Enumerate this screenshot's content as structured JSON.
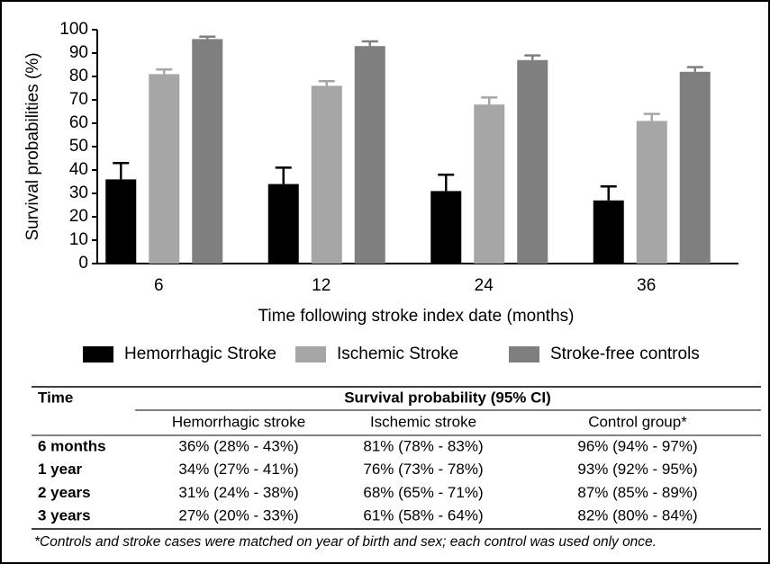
{
  "chart_data": {
    "type": "bar",
    "x_label": "Time following stroke index date (months)",
    "y_label": "Survival probabilities (%)",
    "categories": [
      "6",
      "12",
      "24",
      "36"
    ],
    "series": [
      {
        "name": "Hemorrhagic Stroke",
        "color": "#000000",
        "values": [
          36,
          34,
          31,
          27
        ],
        "errors": [
          7,
          7,
          7,
          6
        ]
      },
      {
        "name": "Ischemic Stroke",
        "color": "#a6a6a6",
        "values": [
          81,
          76,
          68,
          61
        ],
        "errors": [
          2,
          2,
          3,
          3
        ]
      },
      {
        "name": "Stroke-free controls",
        "color": "#7f7f7f",
        "values": [
          96,
          93,
          87,
          82
        ],
        "errors": [
          1,
          2,
          2,
          2
        ]
      }
    ],
    "ylim": [
      0,
      100
    ],
    "yticks": [
      0,
      10,
      20,
      30,
      40,
      50,
      60,
      70,
      80,
      90,
      100
    ],
    "grid": false,
    "legend": "bottom"
  },
  "table": {
    "header": [
      "Time",
      "Survival probability (95% CI)"
    ],
    "columns": [
      "Hemorrhagic stroke",
      "Ischemic stroke",
      "Control group*"
    ],
    "rows": [
      [
        "6 months",
        "36% (28% - 43%)",
        "81% (78% - 83%)",
        "96% (94% - 97%)"
      ],
      [
        "1 year",
        "34% (27% - 41%)",
        "76% (73% - 78%)",
        "93% (92% - 95%)"
      ],
      [
        "2 years",
        "31% (24% - 38%)",
        "68% (65% - 71%)",
        "87% (85% - 89%)"
      ],
      [
        "3 years",
        "27% (20% - 33%)",
        "61% (58% - 64%)",
        "82% (80% - 84%)"
      ]
    ],
    "footnote": "*Controls and stroke cases were matched on year of birth and sex; each control was used only once."
  }
}
